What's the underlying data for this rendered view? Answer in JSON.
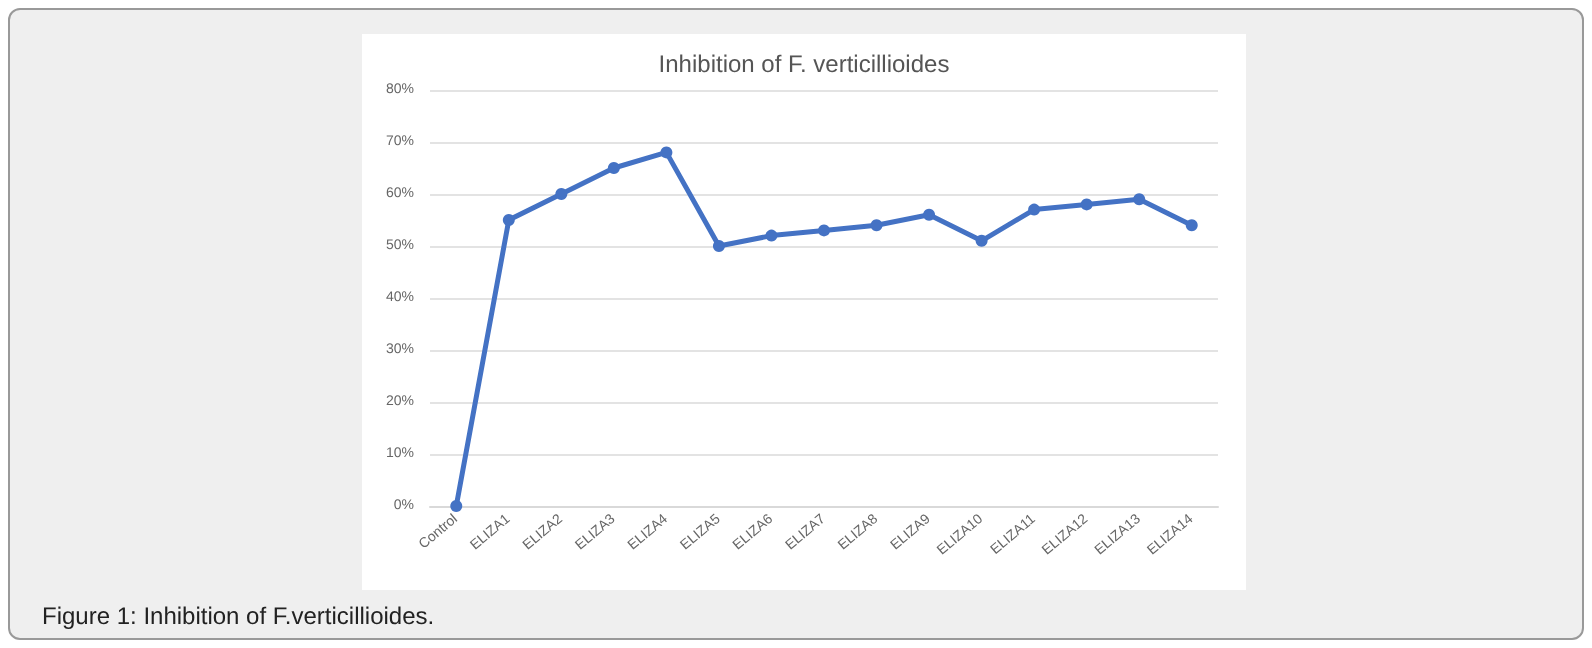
{
  "chart_data": {
    "type": "line",
    "title": "Inhibition of F. verticillioides",
    "categories": [
      "Control",
      "ELIZA1",
      "ELIZA2",
      "ELIZA3",
      "ELIZA4",
      "ELIZA5",
      "ELIZA6",
      "ELIZA7",
      "ELIZA8",
      "ELIZA9",
      "ELIZA10",
      "ELIZA11",
      "ELIZA12",
      "ELIZA13",
      "ELIZA14"
    ],
    "series": [
      {
        "color": "#4472c4",
        "values": [
          0,
          55,
          60,
          65,
          68,
          50,
          52,
          53,
          54,
          56,
          51,
          57,
          58,
          59,
          54
        ]
      }
    ],
    "ylim": [
      0,
      80
    ],
    "yticks": [
      {
        "value": 0,
        "label": "0%"
      },
      {
        "value": 10,
        "label": "10%"
      },
      {
        "value": 20,
        "label": "20%"
      },
      {
        "value": 30,
        "label": "30%"
      },
      {
        "value": 40,
        "label": "40%"
      },
      {
        "value": 50,
        "label": "50%"
      },
      {
        "value": 60,
        "label": "60%"
      },
      {
        "value": 70,
        "label": "70%"
      },
      {
        "value": 80,
        "label": "80%"
      }
    ],
    "grid": "y",
    "marker": "circle",
    "line_style": "solid",
    "annotations": [
      "Figure 1: Inhibition of F.verticillioides."
    ]
  }
}
